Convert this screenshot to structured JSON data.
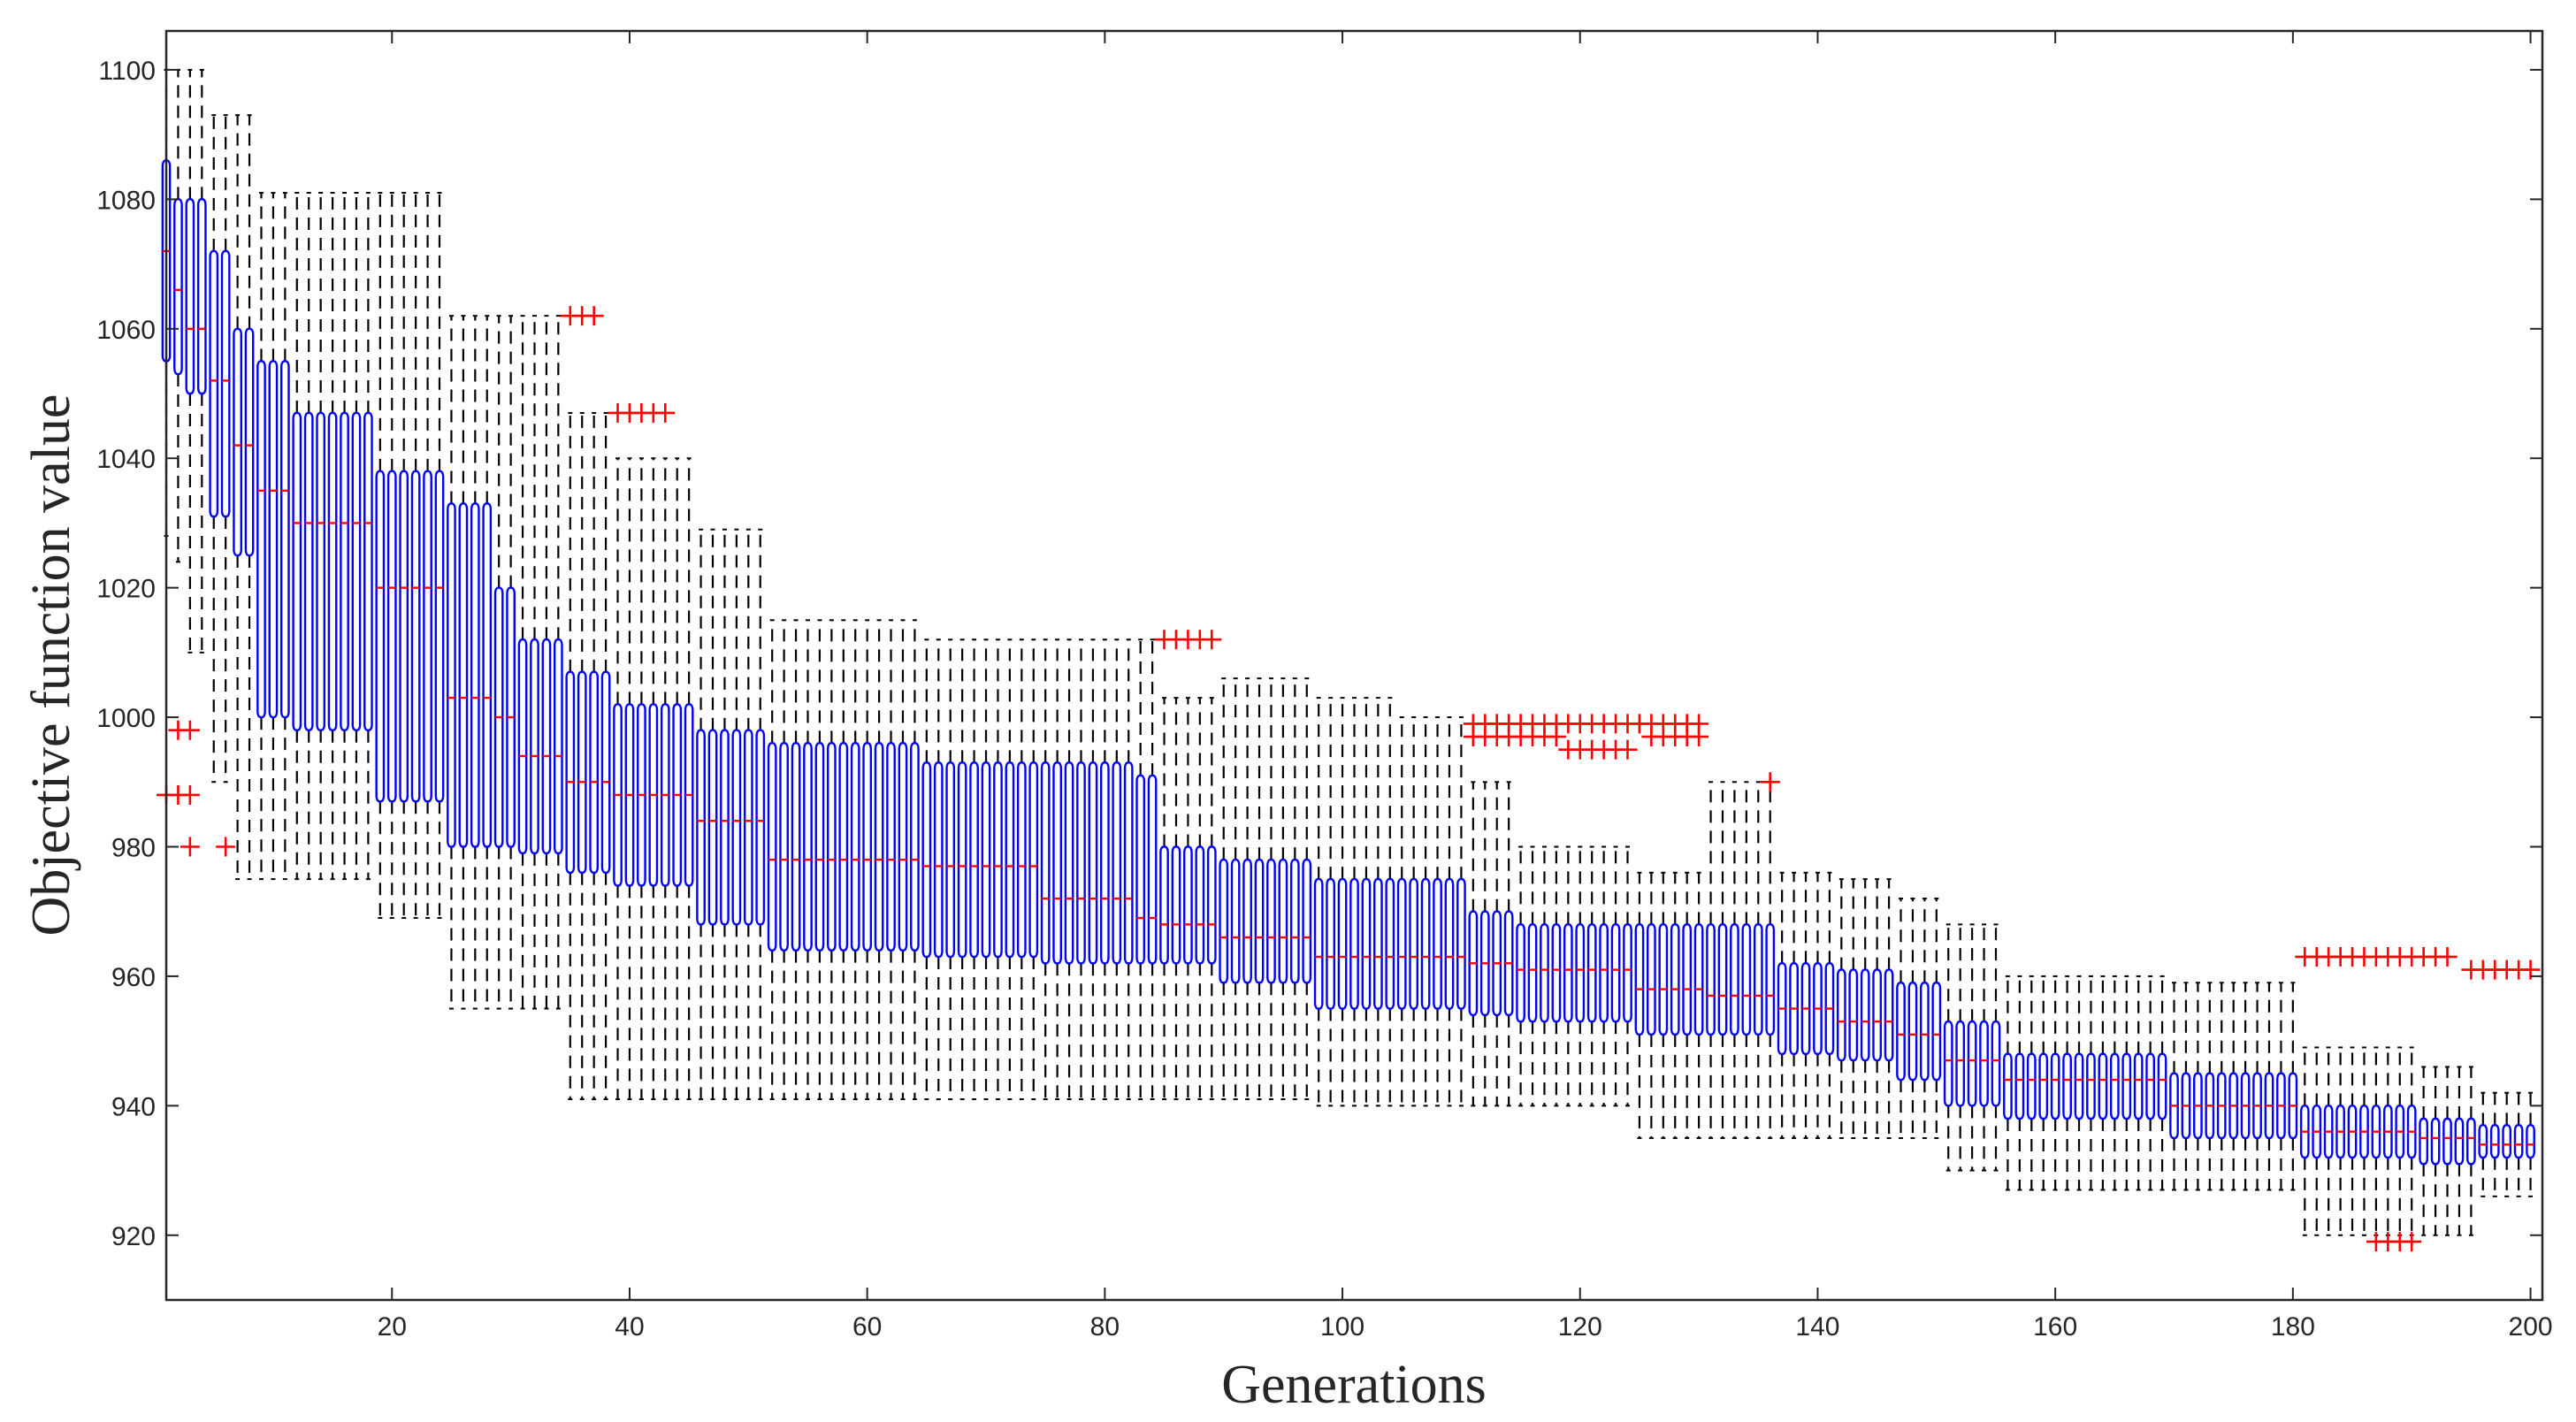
{
  "chart_data": {
    "type": "box",
    "title": "",
    "xlabel": "Generations",
    "ylabel": "Objective function value",
    "xlim": [
      1,
      201
    ],
    "ylim": [
      910,
      1106
    ],
    "xticks": [
      20,
      40,
      60,
      80,
      100,
      120,
      140,
      160,
      180,
      200
    ],
    "yticks": [
      920,
      940,
      960,
      980,
      1000,
      1020,
      1040,
      1060,
      1080,
      1100
    ],
    "n_generations": 200,
    "box_color": "#0000ff",
    "median_color": "#ff0000",
    "whisker_color": "#000000",
    "outlier_color": "#ff0000",
    "outlier_marker": "+",
    "segments": [
      {
        "from": 1,
        "to": 1,
        "q1": 1055,
        "median": 1072,
        "q3": 1086,
        "lower_whisker": 1028,
        "upper_whisker": 1100
      },
      {
        "from": 2,
        "to": 2,
        "q1": 1053,
        "median": 1066,
        "q3": 1080,
        "lower_whisker": 1024,
        "upper_whisker": 1100
      },
      {
        "from": 3,
        "to": 4,
        "q1": 1050,
        "median": 1060,
        "q3": 1080,
        "lower_whisker": 1010,
        "upper_whisker": 1100
      },
      {
        "from": 5,
        "to": 6,
        "q1": 1031,
        "median": 1052,
        "q3": 1072,
        "lower_whisker": 990,
        "upper_whisker": 1093
      },
      {
        "from": 7,
        "to": 8,
        "q1": 1025,
        "median": 1042,
        "q3": 1060,
        "lower_whisker": 975,
        "upper_whisker": 1093
      },
      {
        "from": 9,
        "to": 11,
        "q1": 1000,
        "median": 1035,
        "q3": 1055,
        "lower_whisker": 975,
        "upper_whisker": 1081
      },
      {
        "from": 12,
        "to": 18,
        "q1": 998,
        "median": 1030,
        "q3": 1047,
        "lower_whisker": 975,
        "upper_whisker": 1081
      },
      {
        "from": 19,
        "to": 24,
        "q1": 987,
        "median": 1020,
        "q3": 1038,
        "lower_whisker": 969,
        "upper_whisker": 1081
      },
      {
        "from": 25,
        "to": 28,
        "q1": 980,
        "median": 1003,
        "q3": 1033,
        "lower_whisker": 955,
        "upper_whisker": 1062
      },
      {
        "from": 29,
        "to": 30,
        "q1": 980,
        "median": 1000,
        "q3": 1020,
        "lower_whisker": 955,
        "upper_whisker": 1062
      },
      {
        "from": 31,
        "to": 34,
        "q1": 979,
        "median": 994,
        "q3": 1012,
        "lower_whisker": 955,
        "upper_whisker": 1062
      },
      {
        "from": 35,
        "to": 38,
        "q1": 976,
        "median": 990,
        "q3": 1007,
        "lower_whisker": 941,
        "upper_whisker": 1047
      },
      {
        "from": 39,
        "to": 45,
        "q1": 974,
        "median": 988,
        "q3": 1002,
        "lower_whisker": 941,
        "upper_whisker": 1040
      },
      {
        "from": 46,
        "to": 51,
        "q1": 968,
        "median": 984,
        "q3": 998,
        "lower_whisker": 941,
        "upper_whisker": 1029
      },
      {
        "from": 52,
        "to": 64,
        "q1": 964,
        "median": 978,
        "q3": 996,
        "lower_whisker": 941,
        "upper_whisker": 1015
      },
      {
        "from": 65,
        "to": 74,
        "q1": 963,
        "median": 977,
        "q3": 993,
        "lower_whisker": 941,
        "upper_whisker": 1012
      },
      {
        "from": 75,
        "to": 82,
        "q1": 962,
        "median": 972,
        "q3": 993,
        "lower_whisker": 941,
        "upper_whisker": 1012
      },
      {
        "from": 83,
        "to": 84,
        "q1": 962,
        "median": 969,
        "q3": 991,
        "lower_whisker": 941,
        "upper_whisker": 1012
      },
      {
        "from": 85,
        "to": 89,
        "q1": 962,
        "median": 968,
        "q3": 980,
        "lower_whisker": 941,
        "upper_whisker": 1003
      },
      {
        "from": 90,
        "to": 97,
        "q1": 959,
        "median": 966,
        "q3": 978,
        "lower_whisker": 941,
        "upper_whisker": 1006
      },
      {
        "from": 98,
        "to": 104,
        "q1": 955,
        "median": 963,
        "q3": 975,
        "lower_whisker": 940,
        "upper_whisker": 1003
      },
      {
        "from": 105,
        "to": 110,
        "q1": 955,
        "median": 963,
        "q3": 975,
        "lower_whisker": 940,
        "upper_whisker": 1000
      },
      {
        "from": 111,
        "to": 114,
        "q1": 954,
        "median": 962,
        "q3": 970,
        "lower_whisker": 940,
        "upper_whisker": 990
      },
      {
        "from": 115,
        "to": 124,
        "q1": 953,
        "median": 961,
        "q3": 968,
        "lower_whisker": 940,
        "upper_whisker": 980
      },
      {
        "from": 125,
        "to": 130,
        "q1": 951,
        "median": 958,
        "q3": 968,
        "lower_whisker": 935,
        "upper_whisker": 976
      },
      {
        "from": 131,
        "to": 136,
        "q1": 951,
        "median": 957,
        "q3": 968,
        "lower_whisker": 935,
        "upper_whisker": 990
      },
      {
        "from": 137,
        "to": 141,
        "q1": 948,
        "median": 955,
        "q3": 962,
        "lower_whisker": 935,
        "upper_whisker": 976
      },
      {
        "from": 142,
        "to": 146,
        "q1": 947,
        "median": 953,
        "q3": 961,
        "lower_whisker": 935,
        "upper_whisker": 975
      },
      {
        "from": 147,
        "to": 150,
        "q1": 944,
        "median": 951,
        "q3": 959,
        "lower_whisker": 935,
        "upper_whisker": 972
      },
      {
        "from": 151,
        "to": 155,
        "q1": 940,
        "median": 947,
        "q3": 953,
        "lower_whisker": 930,
        "upper_whisker": 968
      },
      {
        "from": 156,
        "to": 169,
        "q1": 938,
        "median": 944,
        "q3": 948,
        "lower_whisker": 927,
        "upper_whisker": 960
      },
      {
        "from": 170,
        "to": 180,
        "q1": 935,
        "median": 940,
        "q3": 945,
        "lower_whisker": 927,
        "upper_whisker": 959
      },
      {
        "from": 181,
        "to": 190,
        "q1": 932,
        "median": 936,
        "q3": 940,
        "lower_whisker": 920,
        "upper_whisker": 949
      },
      {
        "from": 191,
        "to": 195,
        "q1": 931,
        "median": 935,
        "q3": 938,
        "lower_whisker": 920,
        "upper_whisker": 946
      },
      {
        "from": 196,
        "to": 200,
        "q1": 932,
        "median": 934,
        "q3": 937,
        "lower_whisker": 926,
        "upper_whisker": 942
      }
    ],
    "outliers": [
      {
        "x": 2,
        "y": 998
      },
      {
        "x": 3,
        "y": 998
      },
      {
        "x": 1,
        "y": 988
      },
      {
        "x": 2,
        "y": 988
      },
      {
        "x": 3,
        "y": 988
      },
      {
        "x": 3,
        "y": 980
      },
      {
        "x": 6,
        "y": 980
      },
      {
        "x": 35,
        "y": 1062
      },
      {
        "x": 36,
        "y": 1062
      },
      {
        "x": 37,
        "y": 1062
      },
      {
        "x": 39,
        "y": 1047
      },
      {
        "x": 40,
        "y": 1047
      },
      {
        "x": 41,
        "y": 1047
      },
      {
        "x": 42,
        "y": 1047
      },
      {
        "x": 43,
        "y": 1047
      },
      {
        "x": 85,
        "y": 1012
      },
      {
        "x": 86,
        "y": 1012
      },
      {
        "x": 87,
        "y": 1012
      },
      {
        "x": 88,
        "y": 1012
      },
      {
        "x": 89,
        "y": 1012
      },
      {
        "x": 111,
        "y": 999
      },
      {
        "x": 112,
        "y": 999
      },
      {
        "x": 113,
        "y": 999
      },
      {
        "x": 114,
        "y": 999
      },
      {
        "x": 115,
        "y": 999
      },
      {
        "x": 116,
        "y": 999
      },
      {
        "x": 117,
        "y": 999
      },
      {
        "x": 118,
        "y": 999
      },
      {
        "x": 119,
        "y": 999
      },
      {
        "x": 120,
        "y": 999
      },
      {
        "x": 121,
        "y": 999
      },
      {
        "x": 122,
        "y": 999
      },
      {
        "x": 123,
        "y": 999
      },
      {
        "x": 124,
        "y": 999
      },
      {
        "x": 125,
        "y": 999
      },
      {
        "x": 126,
        "y": 999
      },
      {
        "x": 127,
        "y": 999
      },
      {
        "x": 128,
        "y": 999
      },
      {
        "x": 129,
        "y": 999
      },
      {
        "x": 130,
        "y": 999
      },
      {
        "x": 111,
        "y": 997
      },
      {
        "x": 112,
        "y": 997
      },
      {
        "x": 113,
        "y": 997
      },
      {
        "x": 114,
        "y": 997
      },
      {
        "x": 115,
        "y": 997
      },
      {
        "x": 116,
        "y": 997
      },
      {
        "x": 117,
        "y": 997
      },
      {
        "x": 118,
        "y": 997
      },
      {
        "x": 126,
        "y": 997
      },
      {
        "x": 127,
        "y": 997
      },
      {
        "x": 128,
        "y": 997
      },
      {
        "x": 129,
        "y": 997
      },
      {
        "x": 130,
        "y": 997
      },
      {
        "x": 119,
        "y": 995
      },
      {
        "x": 120,
        "y": 995
      },
      {
        "x": 121,
        "y": 995
      },
      {
        "x": 122,
        "y": 995
      },
      {
        "x": 123,
        "y": 995
      },
      {
        "x": 124,
        "y": 995
      },
      {
        "x": 136,
        "y": 990
      },
      {
        "x": 181,
        "y": 963
      },
      {
        "x": 182,
        "y": 963
      },
      {
        "x": 183,
        "y": 963
      },
      {
        "x": 184,
        "y": 963
      },
      {
        "x": 185,
        "y": 963
      },
      {
        "x": 186,
        "y": 963
      },
      {
        "x": 187,
        "y": 963
      },
      {
        "x": 188,
        "y": 963
      },
      {
        "x": 189,
        "y": 963
      },
      {
        "x": 190,
        "y": 963
      },
      {
        "x": 191,
        "y": 963
      },
      {
        "x": 192,
        "y": 963
      },
      {
        "x": 193,
        "y": 963
      },
      {
        "x": 195,
        "y": 961
      },
      {
        "x": 196,
        "y": 961
      },
      {
        "x": 197,
        "y": 961
      },
      {
        "x": 198,
        "y": 961
      },
      {
        "x": 199,
        "y": 961
      },
      {
        "x": 200,
        "y": 961
      },
      {
        "x": 187,
        "y": 919
      },
      {
        "x": 188,
        "y": 919
      },
      {
        "x": 189,
        "y": 919
      },
      {
        "x": 190,
        "y": 919
      }
    ]
  }
}
